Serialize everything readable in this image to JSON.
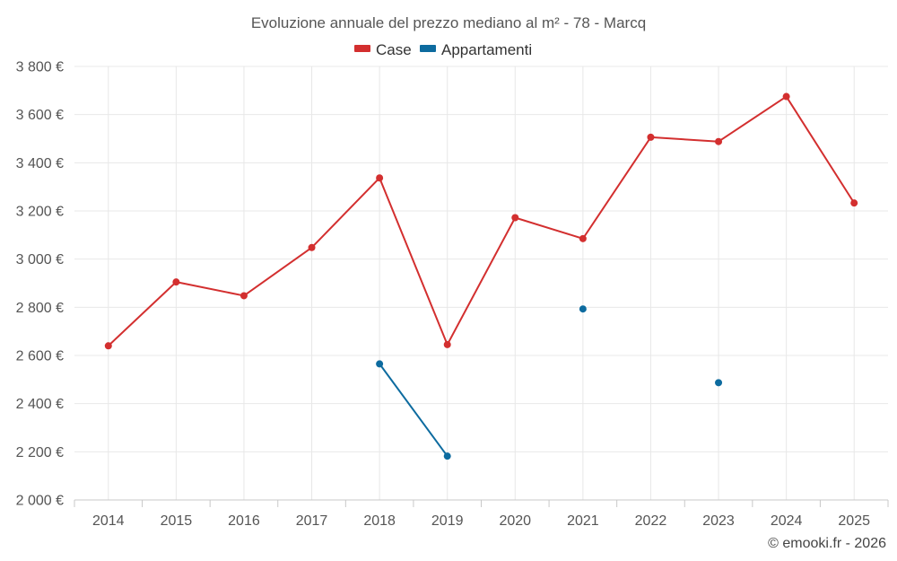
{
  "chart_data": {
    "type": "line",
    "title": "Evoluzione annuale del prezzo mediano al m² - 78 - Marcq",
    "categories": [
      "2014",
      "2015",
      "2016",
      "2017",
      "2018",
      "2019",
      "2020",
      "2021",
      "2022",
      "2023",
      "2024",
      "2025"
    ],
    "series": [
      {
        "name": "Case",
        "color": "#d32f2f",
        "values": [
          2640,
          2905,
          2848,
          3048,
          3337,
          2645,
          3172,
          3085,
          3506,
          3488,
          3675,
          3233
        ]
      },
      {
        "name": "Appartamenti",
        "color": "#0d6b9f",
        "values": [
          null,
          null,
          null,
          null,
          2565,
          2182,
          null,
          2793,
          null,
          2487,
          null,
          null
        ]
      }
    ],
    "ylim": [
      2000,
      3800
    ],
    "yticks": [
      2000,
      2200,
      2400,
      2600,
      2800,
      3000,
      3200,
      3400,
      3600,
      3800
    ],
    "ytick_labels": [
      "2 000 €",
      "2 200 €",
      "2 400 €",
      "2 600 €",
      "2 800 €",
      "3 000 €",
      "3 200 €",
      "3 400 €",
      "3 600 €",
      "3 800 €"
    ],
    "xlabel": "",
    "ylabel": "",
    "grid": true,
    "legend_position": "top-center"
  },
  "footer": {
    "copyright": "© emooki.fr - 2026"
  }
}
